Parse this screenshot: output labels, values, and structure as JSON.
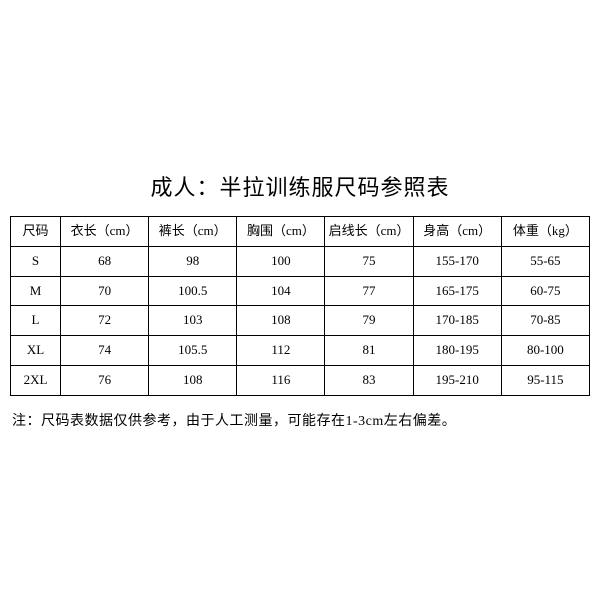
{
  "title": "成人：半拉训练服尺码参照表",
  "table": {
    "type": "table",
    "background_color": "#ffffff",
    "border_color": "#000000",
    "text_color": "#000000",
    "font_size_header": 13,
    "font_size_cell": 13,
    "columns": [
      "尺码",
      "衣长（cm）",
      "裤长（cm）",
      "胸围（cm）",
      "启线长（cm）",
      "身高（cm）",
      "体重（kg）"
    ],
    "rows": [
      [
        "S",
        "68",
        "98",
        "100",
        "75",
        "155-170",
        "55-65"
      ],
      [
        "M",
        "70",
        "100.5",
        "104",
        "77",
        "165-175",
        "60-75"
      ],
      [
        "L",
        "72",
        "103",
        "108",
        "79",
        "170-185",
        "70-85"
      ],
      [
        "XL",
        "74",
        "105.5",
        "112",
        "81",
        "180-195",
        "80-100"
      ],
      [
        "2XL",
        "76",
        "108",
        "116",
        "83",
        "195-210",
        "95-115"
      ]
    ]
  },
  "note": "注：尺码表数据仅供参考，由于人工测量，可能存在1-3cm左右偏差。"
}
